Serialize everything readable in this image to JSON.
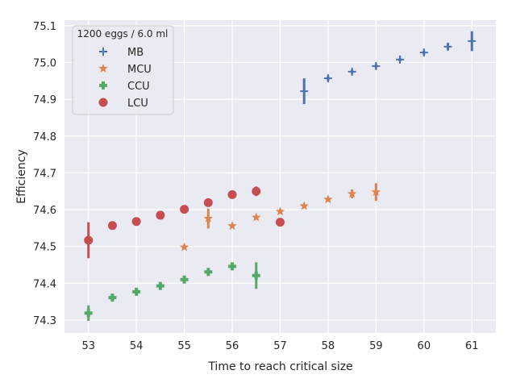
{
  "chart_data": {
    "type": "scatter",
    "title": "",
    "xlabel": "Time to reach critical size",
    "ylabel": "Efficiency",
    "xlim": [
      52.5,
      61.5
    ],
    "ylim": [
      74.265,
      75.115
    ],
    "xticks": [
      53,
      54,
      55,
      56,
      57,
      58,
      59,
      60,
      61
    ],
    "yticks": [
      74.3,
      74.4,
      74.5,
      74.6,
      74.7,
      74.8,
      74.9,
      75.0,
      75.1
    ],
    "ytick_labels": [
      "74.3",
      "74.4",
      "74.5",
      "74.6",
      "74.7",
      "74.8",
      "74.9",
      "75.0",
      "75.1"
    ],
    "grid": true,
    "legend": {
      "title": "1200 eggs / 6.0 ml",
      "placement": "top-left"
    },
    "series": [
      {
        "name": "MB",
        "marker": "plus",
        "color": "#4c72b0",
        "x": [
          57.5,
          58,
          58.5,
          59,
          59.5,
          60,
          60.5,
          61
        ],
        "y": [
          74.922,
          74.957,
          74.975,
          74.99,
          75.008,
          75.027,
          75.043,
          75.058
        ],
        "err": [
          0.035,
          0.007,
          0.006,
          0.006,
          0.005,
          0.006,
          0.01,
          0.027
        ]
      },
      {
        "name": "MCU",
        "marker": "star",
        "color": "#dd8452",
        "x": [
          55,
          55.5,
          56,
          56.5,
          57,
          57.5,
          58,
          58.5,
          59
        ],
        "y": [
          74.498,
          74.576,
          74.556,
          74.579,
          74.595,
          74.61,
          74.628,
          74.643,
          74.648
        ],
        "err": [
          0.003,
          0.027,
          0.004,
          0.003,
          0.003,
          0.003,
          0.004,
          0.012,
          0.024
        ]
      },
      {
        "name": "CCU",
        "marker": "plus-bold",
        "color": "#55a868",
        "x": [
          53,
          53.5,
          54,
          54.5,
          55,
          55.5,
          56,
          56.5
        ],
        "y": [
          74.319,
          74.361,
          74.377,
          74.393,
          74.41,
          74.431,
          74.446,
          74.421
        ],
        "err": [
          0.021,
          0.006,
          0.005,
          0.004,
          0.005,
          0.006,
          0.006,
          0.036
        ]
      },
      {
        "name": "LCU",
        "marker": "circle",
        "color": "#c44e52",
        "x": [
          53,
          53.5,
          54,
          54.5,
          55,
          55.5,
          56,
          56.5,
          57
        ],
        "y": [
          74.517,
          74.557,
          74.568,
          74.585,
          74.601,
          74.619,
          74.641,
          74.65,
          74.566
        ],
        "err": [
          0.049,
          0.01,
          0.004,
          0.004,
          0.004,
          0.004,
          0.004,
          0.013,
          0.003
        ]
      }
    ]
  }
}
